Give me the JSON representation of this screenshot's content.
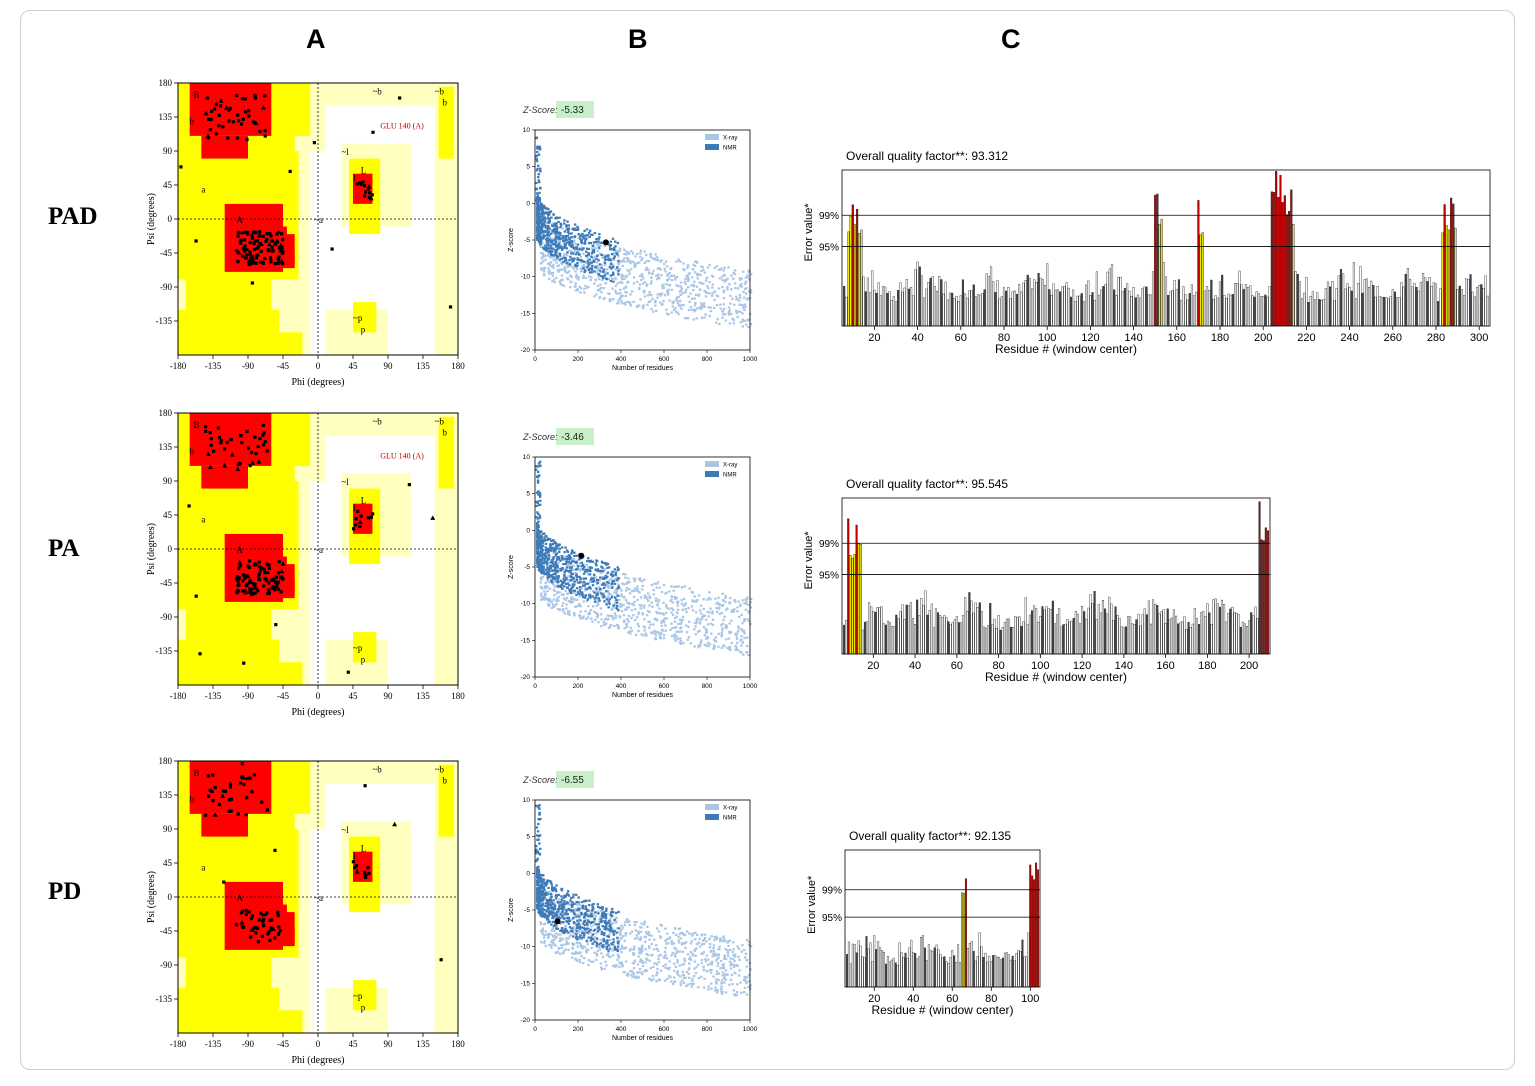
{
  "columns": [
    "A",
    "B",
    "C"
  ],
  "rows": [
    {
      "label": "PAD",
      "ramachandran": {
        "axis_x_label": "Phi (degrees)",
        "axis_y_label": "Psi (degrees)",
        "x_ticks": [
          "-180",
          "-135",
          "-90",
          "-45",
          "0",
          "45",
          "90",
          "135",
          "180"
        ],
        "y_ticks": [
          "180",
          "135",
          "90",
          "45",
          "0",
          "-45",
          "-90",
          "-135"
        ],
        "outlier_label": "GLU 140 (A)",
        "region_labels": [
          "B",
          "b",
          "A",
          "a",
          "L",
          "l",
          "~b",
          "~a",
          "~l",
          "~p",
          "p",
          "~b",
          "b"
        ]
      },
      "zscore": {
        "z_label": "Z-Score:",
        "z_value": "-5.33",
        "z_num": -5.33,
        "x_label": "Number of residues",
        "y_label": "Z-score",
        "legend": [
          "X-ray",
          "NMR"
        ],
        "x_ticks": [
          "0",
          "200",
          "400",
          "600",
          "800",
          "1000"
        ],
        "y_ticks": [
          "10",
          "5",
          "0",
          "-5",
          "-10",
          "-15",
          "-20"
        ],
        "residues": 330
      },
      "errat": {
        "title": "Overall quality factor**: 93.312",
        "x_label": "Residue # (window center)",
        "y_label": "Error value*",
        "levels": [
          "99%",
          "95%"
        ],
        "x_ticks": [
          "20",
          "40",
          "60",
          "80",
          "100",
          "120",
          "140",
          "160",
          "180",
          "200",
          "220",
          "240",
          "260",
          "280",
          "300"
        ],
        "x_range": [
          5,
          305
        ]
      }
    },
    {
      "label": "PA",
      "ramachandran": {
        "axis_x_label": "Phi (degrees)",
        "axis_y_label": "Psi (degrees)",
        "x_ticks": [
          "-180",
          "-135",
          "-90",
          "-45",
          "0",
          "45",
          "90",
          "135",
          "180"
        ],
        "y_ticks": [
          "180",
          "135",
          "90",
          "45",
          "0",
          "-45",
          "-90",
          "-135"
        ],
        "outlier_label": "GLU 140 (A)",
        "region_labels": [
          "B",
          "b",
          "A",
          "a",
          "L",
          "l",
          "~b",
          "~a",
          "~l",
          "~p",
          "p",
          "~b",
          "b"
        ]
      },
      "zscore": {
        "z_label": "Z-Score:",
        "z_value": "-3.46",
        "z_num": -3.46,
        "x_label": "Number of residues",
        "y_label": "Z-score",
        "legend": [
          "X-ray",
          "NMR"
        ],
        "x_ticks": [
          "0",
          "200",
          "400",
          "600",
          "800",
          "1000"
        ],
        "y_ticks": [
          "10",
          "5",
          "0",
          "-5",
          "-10",
          "-15",
          "-20"
        ],
        "residues": 215
      },
      "errat": {
        "title": "Overall quality factor**: 95.545",
        "x_label": "Residue # (window center)",
        "y_label": "Error value*",
        "levels": [
          "99%",
          "95%"
        ],
        "x_ticks": [
          "20",
          "40",
          "60",
          "80",
          "100",
          "120",
          "140",
          "160",
          "180",
          "200"
        ],
        "x_range": [
          5,
          210
        ]
      }
    },
    {
      "label": "PD",
      "ramachandran": {
        "axis_x_label": "Phi (degrees)",
        "axis_y_label": "Psi (degrees)",
        "x_ticks": [
          "-180",
          "-135",
          "-90",
          "-45",
          "0",
          "45",
          "90",
          "135",
          "180"
        ],
        "y_ticks": [
          "180",
          "135",
          "90",
          "45",
          "0",
          "-45",
          "-90",
          "-135"
        ],
        "outlier_label": "",
        "region_labels": [
          "B",
          "b",
          "A",
          "a",
          "L",
          "l",
          "~b",
          "~a",
          "~l",
          "~p",
          "p",
          "~b",
          "b"
        ]
      },
      "zscore": {
        "z_label": "Z-Score:",
        "z_value": "-6.55",
        "z_num": -6.55,
        "x_label": "Number of residues",
        "y_label": "Z-score",
        "legend": [
          "X-ray",
          "NMR"
        ],
        "x_ticks": [
          "0",
          "200",
          "400",
          "600",
          "800",
          "1000"
        ],
        "y_ticks": [
          "10",
          "5",
          "0",
          "-5",
          "-10",
          "-15",
          "-20"
        ],
        "residues": 105
      },
      "errat": {
        "title": "Overall quality factor**: 92.135",
        "x_label": "Residue # (window center)",
        "y_label": "Error value*",
        "levels": [
          "99%",
          "95%"
        ],
        "x_ticks": [
          "20",
          "40",
          "60",
          "80",
          "100"
        ],
        "x_range": [
          5,
          105
        ]
      }
    }
  ],
  "colors": {
    "core": "#ff0000",
    "allowed": "#ffff00",
    "generous": "#ffffc0",
    "xray": "#aac6e6",
    "nmr": "#3d7ab8",
    "zbox": "#c8f0c8",
    "bar_warn": "#e8e800",
    "bar_err": "#c00000"
  }
}
